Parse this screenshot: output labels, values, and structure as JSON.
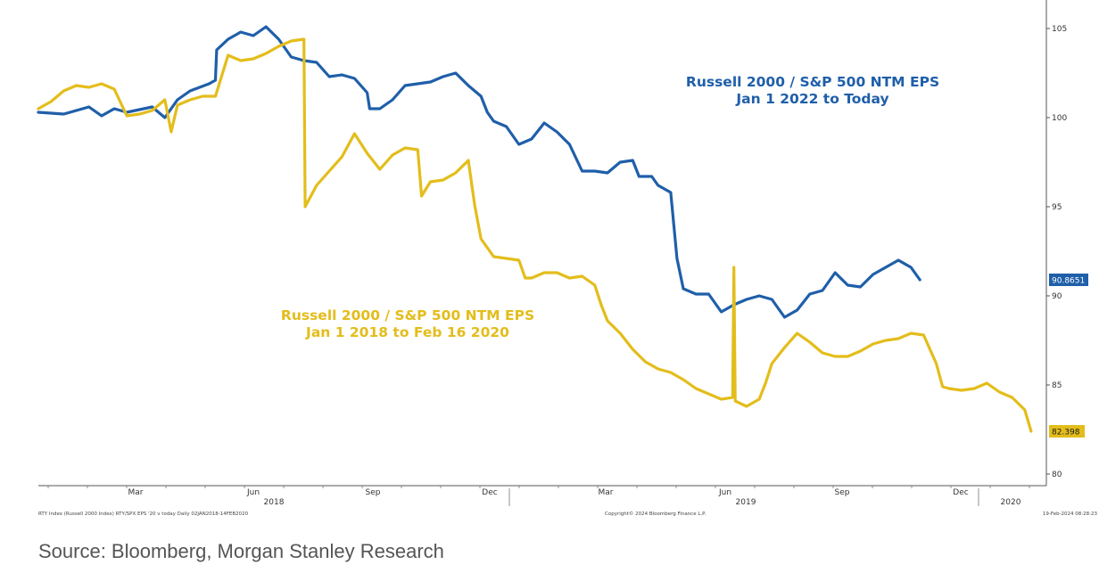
{
  "chart_data": {
    "type": "line",
    "title": "",
    "xlabel": "",
    "ylabel": "",
    "ylim": [
      80,
      106
    ],
    "y_ticks": [
      80,
      85,
      90,
      95,
      100,
      105
    ],
    "y_axis_side": "right",
    "x_month_ticks": [
      "Mar",
      "Jun",
      "Sep",
      "Dec",
      "Mar",
      "Jun",
      "Sep",
      "Dec"
    ],
    "x_year_labels": [
      "2018",
      "2019",
      "2020"
    ],
    "x_index_range": [
      0,
      530
    ],
    "grid": false,
    "legend": "none",
    "series": [
      {
        "name": "Russell 2000 / S&P 500 NTM EPS Jan 1 2022 to Today",
        "color": "#1f5fa9",
        "last_value_label": "90.8651",
        "points": [
          [
            0,
            100.3
          ],
          [
            20,
            100.2
          ],
          [
            40,
            100.6
          ],
          [
            50,
            100.1
          ],
          [
            60,
            100.5
          ],
          [
            70,
            100.3
          ],
          [
            90,
            100.6
          ],
          [
            100,
            100.0
          ],
          [
            110,
            101.0
          ],
          [
            120,
            101.5
          ],
          [
            135,
            101.9
          ],
          [
            140,
            102.1
          ],
          [
            141,
            103.8
          ],
          [
            150,
            104.4
          ],
          [
            160,
            104.8
          ],
          [
            170,
            104.6
          ],
          [
            180,
            105.1
          ],
          [
            190,
            104.4
          ],
          [
            200,
            103.4
          ],
          [
            210,
            103.2
          ],
          [
            220,
            103.1
          ],
          [
            230,
            102.3
          ],
          [
            240,
            102.4
          ],
          [
            250,
            102.2
          ],
          [
            260,
            101.4
          ],
          [
            262,
            100.5
          ],
          [
            270,
            100.5
          ],
          [
            280,
            101.0
          ],
          [
            290,
            101.8
          ],
          [
            300,
            101.9
          ],
          [
            310,
            102.0
          ],
          [
            320,
            102.3
          ],
          [
            330,
            102.5
          ],
          [
            340,
            101.8
          ],
          [
            350,
            101.2
          ],
          [
            355,
            100.3
          ],
          [
            360,
            99.8
          ],
          [
            370,
            99.5
          ],
          [
            380,
            98.5
          ],
          [
            390,
            98.8
          ],
          [
            400,
            99.7
          ],
          [
            410,
            99.2
          ],
          [
            420,
            98.5
          ],
          [
            430,
            97.0
          ],
          [
            440,
            97.0
          ],
          [
            450,
            96.9
          ],
          [
            460,
            97.5
          ],
          [
            470,
            97.6
          ],
          [
            475,
            96.7
          ],
          [
            485,
            96.7
          ],
          [
            490,
            96.2
          ],
          [
            500,
            95.8
          ],
          [
            505,
            92.1
          ],
          [
            510,
            90.4
          ],
          [
            520,
            90.1
          ],
          [
            530,
            90.1
          ],
          [
            540,
            89.1
          ],
          [
            550,
            89.5
          ],
          [
            560,
            89.8
          ],
          [
            570,
            90.0
          ],
          [
            580,
            89.8
          ],
          [
            590,
            88.8
          ],
          [
            600,
            89.2
          ],
          [
            610,
            90.1
          ],
          [
            620,
            90.3
          ],
          [
            630,
            91.3
          ],
          [
            640,
            90.6
          ],
          [
            650,
            90.5
          ],
          [
            660,
            91.2
          ],
          [
            670,
            91.6
          ],
          [
            680,
            92.0
          ],
          [
            690,
            91.6
          ],
          [
            697,
            90.9
          ]
        ]
      },
      {
        "name": "Russell 2000 / S&P 500 NTM EPS Jan 1 2018 to Feb 16 2020",
        "color": "#e3bd1b",
        "last_value_label": "82.398",
        "points": [
          [
            0,
            100.5
          ],
          [
            10,
            100.9
          ],
          [
            20,
            101.5
          ],
          [
            30,
            101.8
          ],
          [
            40,
            101.7
          ],
          [
            50,
            101.9
          ],
          [
            60,
            101.6
          ],
          [
            70,
            100.1
          ],
          [
            80,
            100.2
          ],
          [
            90,
            100.4
          ],
          [
            100,
            101.0
          ],
          [
            105,
            99.2
          ],
          [
            110,
            100.7
          ],
          [
            120,
            101.0
          ],
          [
            130,
            101.2
          ],
          [
            140,
            101.2
          ],
          [
            150,
            103.5
          ],
          [
            160,
            103.2
          ],
          [
            170,
            103.3
          ],
          [
            180,
            103.6
          ],
          [
            190,
            104.0
          ],
          [
            200,
            104.3
          ],
          [
            210,
            104.4
          ],
          [
            211,
            95.0
          ],
          [
            220,
            96.2
          ],
          [
            230,
            97.0
          ],
          [
            240,
            97.8
          ],
          [
            250,
            99.1
          ],
          [
            260,
            98.0
          ],
          [
            270,
            97.1
          ],
          [
            280,
            97.9
          ],
          [
            290,
            98.3
          ],
          [
            300,
            98.2
          ],
          [
            303,
            95.6
          ],
          [
            310,
            96.4
          ],
          [
            320,
            96.5
          ],
          [
            330,
            96.9
          ],
          [
            340,
            97.6
          ],
          [
            345,
            95.1
          ],
          [
            350,
            93.2
          ],
          [
            360,
            92.2
          ],
          [
            370,
            92.1
          ],
          [
            380,
            92.0
          ],
          [
            385,
            91.0
          ],
          [
            390,
            91.0
          ],
          [
            400,
            91.3
          ],
          [
            410,
            91.3
          ],
          [
            420,
            91.0
          ],
          [
            430,
            91.1
          ],
          [
            440,
            90.6
          ],
          [
            445,
            89.5
          ],
          [
            450,
            88.6
          ],
          [
            460,
            87.9
          ],
          [
            470,
            87.0
          ],
          [
            480,
            86.3
          ],
          [
            490,
            85.9
          ],
          [
            500,
            85.7
          ],
          [
            510,
            85.3
          ],
          [
            520,
            84.8
          ],
          [
            530,
            84.5
          ],
          [
            540,
            84.2
          ],
          [
            549,
            84.3
          ],
          [
            550,
            91.6
          ],
          [
            551,
            84.1
          ],
          [
            560,
            83.8
          ],
          [
            570,
            84.2
          ],
          [
            575,
            85.1
          ],
          [
            580,
            86.2
          ],
          [
            590,
            87.1
          ],
          [
            600,
            87.9
          ],
          [
            610,
            87.4
          ],
          [
            620,
            86.8
          ],
          [
            630,
            86.6
          ],
          [
            640,
            86.6
          ],
          [
            650,
            86.9
          ],
          [
            660,
            87.3
          ],
          [
            670,
            87.5
          ],
          [
            680,
            87.6
          ],
          [
            690,
            87.9
          ],
          [
            700,
            87.8
          ],
          [
            710,
            86.2
          ],
          [
            715,
            84.9
          ],
          [
            720,
            84.8
          ],
          [
            730,
            84.7
          ],
          [
            740,
            84.8
          ],
          [
            750,
            85.1
          ],
          [
            760,
            84.6
          ],
          [
            770,
            84.3
          ],
          [
            780,
            83.6
          ],
          [
            785,
            82.4
          ]
        ]
      }
    ],
    "annotations": [
      {
        "line1": "Russell 2000 / S&P 500 NTM EPS",
        "line2": "Jan 1 2022 to Today",
        "color": "#1f5fa9"
      },
      {
        "line1": "Russell 2000 / S&P 500 NTM EPS",
        "line2": "Jan 1 2018 to Feb 16 2020",
        "color": "#e3bd1b"
      }
    ],
    "footer_left": "RTY Index (Russell 2000 Index) RTY/SPX EPS '20 v today  Daily 02JAN2018-14FEB2020",
    "footer_center": "Copyright© 2024 Bloomberg Finance L.P.",
    "footer_right": "19-Feb-2024 08:28:23"
  },
  "source_text": "Source: Bloomberg, Morgan Stanley Research"
}
